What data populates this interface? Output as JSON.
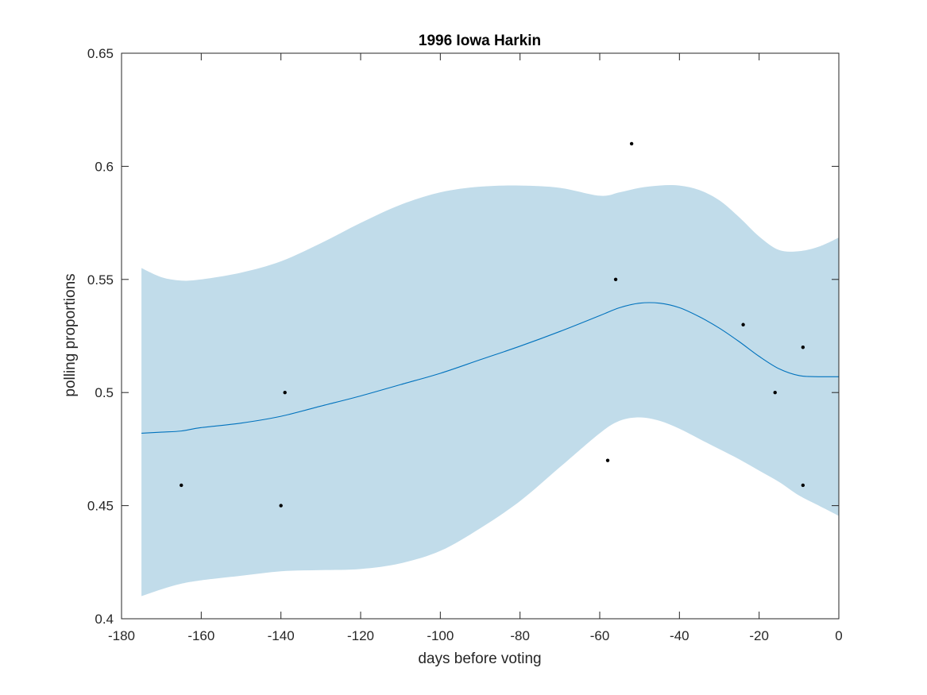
{
  "chart_data": {
    "type": "scatter",
    "title": "1996 Iowa Harkin",
    "xlabel": "days before voting",
    "ylabel": "polling proportions",
    "xlim": [
      -180,
      0
    ],
    "ylim": [
      0.4,
      0.65
    ],
    "xticks": [
      -180,
      -160,
      -140,
      -120,
      -100,
      -80,
      -60,
      -40,
      -20,
      0
    ],
    "xtick_labels": [
      "-180",
      "-160",
      "-140",
      "-120",
      "-100",
      "-80",
      "-60",
      "-40",
      "-20",
      "0"
    ],
    "yticks": [
      0.4,
      0.45,
      0.5,
      0.55,
      0.6,
      0.65
    ],
    "ytick_labels": [
      "0.4",
      "0.45",
      "0.5",
      "0.55",
      "0.6",
      "0.65"
    ],
    "grid": false,
    "colors": {
      "band": "#c1dcea",
      "line": "#0072bd",
      "points": "#000000",
      "axes": "#262626"
    },
    "points": [
      {
        "x": -165,
        "y": 0.459
      },
      {
        "x": -140,
        "y": 0.45
      },
      {
        "x": -139,
        "y": 0.5
      },
      {
        "x": -58,
        "y": 0.47
      },
      {
        "x": -56,
        "y": 0.55
      },
      {
        "x": -52,
        "y": 0.61
      },
      {
        "x": -24,
        "y": 0.53
      },
      {
        "x": -16,
        "y": 0.5
      },
      {
        "x": -9,
        "y": 0.52
      },
      {
        "x": -9,
        "y": 0.459
      }
    ],
    "trend": {
      "x": [
        -175,
        -170,
        -165,
        -160,
        -150,
        -140,
        -130,
        -120,
        -110,
        -100,
        -90,
        -80,
        -70,
        -60,
        -55,
        -50,
        -45,
        -40,
        -35,
        -30,
        -25,
        -20,
        -15,
        -10,
        -5,
        0
      ],
      "mean": [
        0.482,
        0.4825,
        0.483,
        0.4845,
        0.4865,
        0.4895,
        0.494,
        0.4985,
        0.5035,
        0.5085,
        0.5145,
        0.5205,
        0.527,
        0.534,
        0.5375,
        0.5395,
        0.5395,
        0.5375,
        0.5335,
        0.5285,
        0.5225,
        0.516,
        0.5105,
        0.5075,
        0.507,
        0.507
      ],
      "upper": [
        0.555,
        0.551,
        0.5495,
        0.55,
        0.553,
        0.558,
        0.566,
        0.575,
        0.583,
        0.5885,
        0.591,
        0.5915,
        0.5905,
        0.587,
        0.5885,
        0.5905,
        0.5915,
        0.5915,
        0.5895,
        0.585,
        0.5775,
        0.569,
        0.563,
        0.5625,
        0.5645,
        0.5685
      ],
      "lower": [
        0.41,
        0.413,
        0.4155,
        0.417,
        0.419,
        0.421,
        0.4215,
        0.422,
        0.4245,
        0.43,
        0.44,
        0.452,
        0.467,
        0.482,
        0.4875,
        0.489,
        0.4875,
        0.484,
        0.4795,
        0.475,
        0.4705,
        0.4655,
        0.4605,
        0.4545,
        0.45,
        0.4455
      ]
    }
  }
}
